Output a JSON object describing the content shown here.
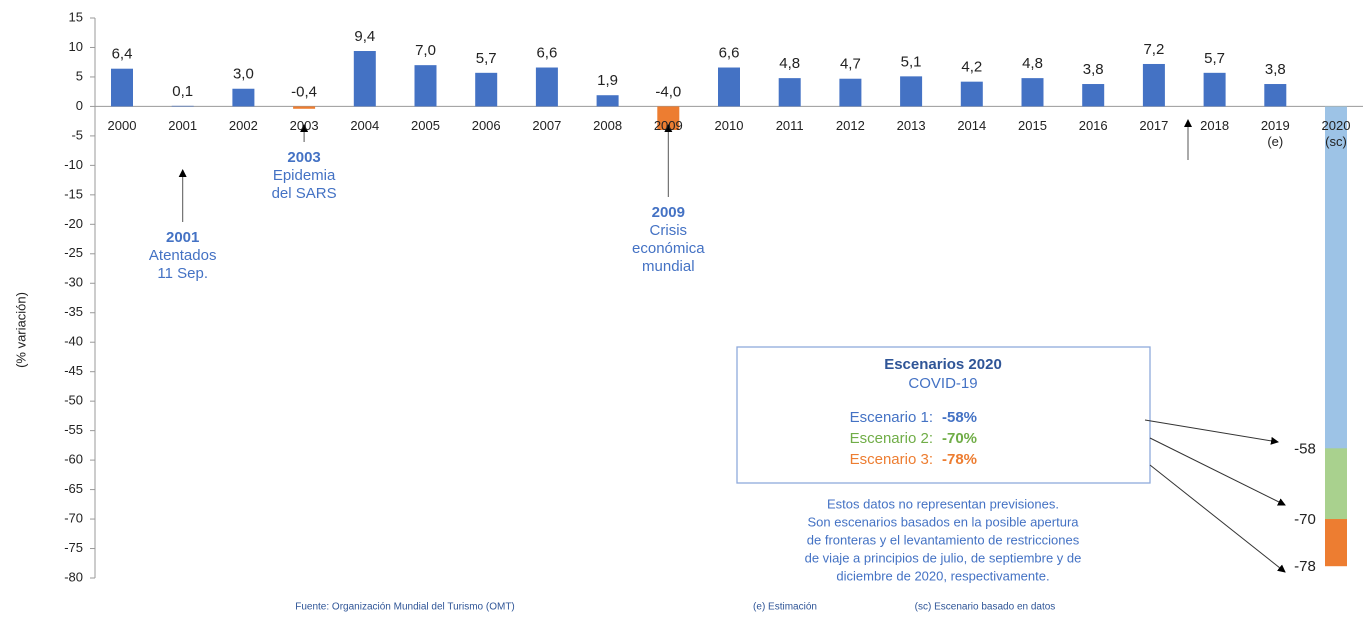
{
  "chart_data": {
    "type": "bar",
    "y_axis_label": "(% variación)",
    "categories": [
      "2000",
      "2001",
      "2002",
      "2003",
      "2004",
      "2005",
      "2006",
      "2007",
      "2008",
      "2009",
      "2010",
      "2011",
      "2012",
      "2013",
      "2014",
      "2015",
      "2016",
      "2017",
      "2018",
      "2019 (e)",
      "2020 (sc)"
    ],
    "values": [
      6.4,
      0.1,
      3.0,
      -0.4,
      9.4,
      7.0,
      5.7,
      6.6,
      1.9,
      -4.0,
      6.6,
      4.8,
      4.7,
      5.1,
      4.2,
      4.8,
      3.8,
      7.2,
      5.7,
      3.8,
      null
    ],
    "value_labels": [
      "6,4",
      "0,1",
      "3,0",
      "-0,4",
      "9,4",
      "7,0",
      "5,7",
      "6,6",
      "1,9",
      "-4,0",
      "6,6",
      "4,8",
      "4,7",
      "5,1",
      "4,2",
      "4,8",
      "3,8",
      "7,2",
      "5,7",
      "3,8",
      null
    ],
    "bar_colors": [
      "#4472c4",
      "#4472c4",
      "#4472c4",
      "#ed7d31",
      "#4472c4",
      "#4472c4",
      "#4472c4",
      "#4472c4",
      "#4472c4",
      "#ed7d31",
      "#4472c4",
      "#4472c4",
      "#4472c4",
      "#4472c4",
      "#4472c4",
      "#4472c4",
      "#4472c4",
      "#4472c4",
      "#4472c4",
      "#4472c4",
      null
    ],
    "ylim": [
      -80,
      15
    ],
    "yticks": [
      15,
      10,
      5,
      0,
      -5,
      -10,
      -15,
      -20,
      -25,
      -30,
      -35,
      -40,
      -45,
      -50,
      -55,
      -60,
      -65,
      -70,
      -75,
      -80
    ],
    "grid": false,
    "annotations": [
      {
        "year": "2001",
        "lines": [
          "Atentados",
          "11 Sep."
        ]
      },
      {
        "year": "2003",
        "lines": [
          "Epidemia",
          "del SARS"
        ]
      },
      {
        "year": "2009",
        "lines": [
          "Crisis",
          "económica",
          "mundial"
        ]
      }
    ],
    "scenarios_box": {
      "title": "Escenarios 2020",
      "subtitle": "COVID-19"
    },
    "scenarios": [
      {
        "name": "Escenario 1:",
        "value": -58,
        "value_label": "-58%",
        "axis_label": "-58",
        "color": "#9dc3e6",
        "text_color": "#4472c4"
      },
      {
        "name": "Escenario 2:",
        "value": -70,
        "value_label": "-70%",
        "axis_label": "-70",
        "color": "#a9d18e",
        "text_color": "#70ad47"
      },
      {
        "name": "Escenario 3:",
        "value": -78,
        "value_label": "-78%",
        "axis_label": "-78",
        "color": "#ed7d31",
        "text_color": "#ed7d31"
      }
    ],
    "note": [
      "Estos datos no representan previsiones.",
      "Son escenarios basados en la posible apertura",
      "de fronteras y el levantamiento de restricciones",
      "de viaje a principios de julio, de septiembre y de",
      "diciembre de 2020, respectivamente."
    ],
    "footer": [
      "Fuente: Organización Mundial del Turismo (OMT)",
      "(e) Estimación",
      "(sc) Escenario basado en datos"
    ]
  }
}
